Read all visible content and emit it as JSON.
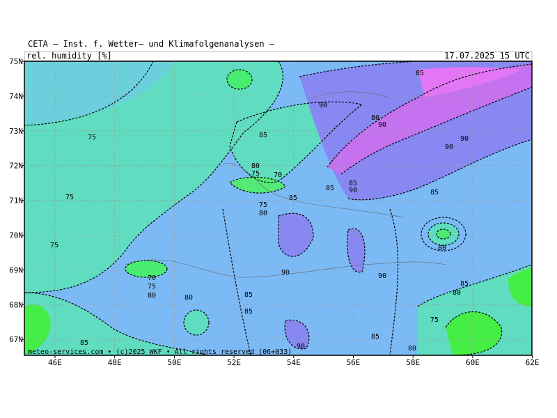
{
  "header": {
    "title": "CETA — Inst. f. Wetter— und Klimafolgenanalysen —",
    "subtitle": "rel. humidity [%]",
    "date": "17.07.2025 15 UTC"
  },
  "axes": {
    "lat": [
      "75N",
      "74N",
      "73N",
      "72N",
      "71N",
      "70N",
      "69N",
      "68N",
      "67N"
    ],
    "lon": [
      "46E",
      "48E",
      "50E",
      "52E",
      "54E",
      "56E",
      "58E",
      "60E",
      "62E"
    ]
  },
  "contour_labels": [
    "75",
    "75",
    "75",
    "70",
    "75",
    "80",
    "80",
    "85",
    "85",
    "90",
    "90",
    "85",
    "80",
    "75",
    "80",
    "85",
    "80",
    "90",
    "85",
    "90",
    "90",
    "85",
    "85",
    "85",
    "90",
    "80",
    "75",
    "70",
    "80",
    "75",
    "85",
    "90",
    "80",
    "90",
    "85",
    "85"
  ],
  "footer": "meteo-services.com • (c)2025 WKF • All rights reserved (06+033)"
}
